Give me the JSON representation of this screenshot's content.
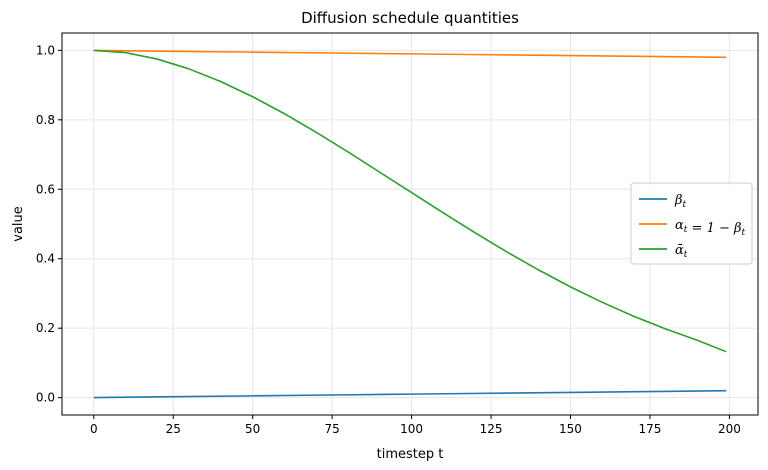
{
  "chart_data": {
    "type": "line",
    "title": "Diffusion schedule quantities",
    "xlabel": "timestep t",
    "ylabel": "value",
    "xlim": [
      -10,
      209
    ],
    "ylim": [
      -0.05,
      1.05
    ],
    "xticks": [
      0,
      25,
      50,
      75,
      100,
      125,
      150,
      175,
      200
    ],
    "yticks": [
      0.0,
      0.2,
      0.4,
      0.6,
      0.8,
      1.0
    ],
    "xtick_labels": [
      "0",
      "25",
      "50",
      "75",
      "100",
      "125",
      "150",
      "175",
      "200"
    ],
    "ytick_labels": [
      "0.0",
      "0.2",
      "0.4",
      "0.6",
      "0.8",
      "1.0"
    ],
    "grid": true,
    "legend_position": "center-right",
    "series": [
      {
        "name": "βt",
        "legend_parts": [
          {
            "t": "β",
            "sub": "t"
          }
        ],
        "color": "#1f77b4",
        "x": [
          0,
          25,
          50,
          75,
          100,
          125,
          150,
          175,
          199
        ],
        "values": [
          0.0001,
          0.0026,
          0.0051,
          0.0076,
          0.0101,
          0.0126,
          0.015,
          0.0175,
          0.02
        ]
      },
      {
        "name": "αt = 1 − βt",
        "legend_parts": [
          {
            "t": "α",
            "sub": "t"
          },
          {
            "t": " = 1 − β",
            "sub": "t"
          }
        ],
        "color": "#ff7f0e",
        "x": [
          0,
          25,
          50,
          75,
          100,
          125,
          150,
          175,
          199
        ],
        "values": [
          0.9999,
          0.9974,
          0.9949,
          0.9924,
          0.9899,
          0.9874,
          0.985,
          0.9825,
          0.98
        ]
      },
      {
        "name": "ᾱt",
        "legend_parts": [
          {
            "t": "ᾱ",
            "sub": "t"
          }
        ],
        "color": "#2ca02c",
        "x": [
          0,
          10,
          20,
          30,
          40,
          50,
          60,
          70,
          80,
          90,
          100,
          110,
          120,
          130,
          140,
          150,
          160,
          170,
          180,
          190,
          199
        ],
        "values": [
          0.9999,
          0.9935,
          0.975,
          0.9465,
          0.91,
          0.8665,
          0.8175,
          0.764,
          0.7075,
          0.649,
          0.5905,
          0.532,
          0.4745,
          0.4195,
          0.3675,
          0.319,
          0.2745,
          0.234,
          0.1975,
          0.165,
          0.1323
        ]
      }
    ]
  }
}
